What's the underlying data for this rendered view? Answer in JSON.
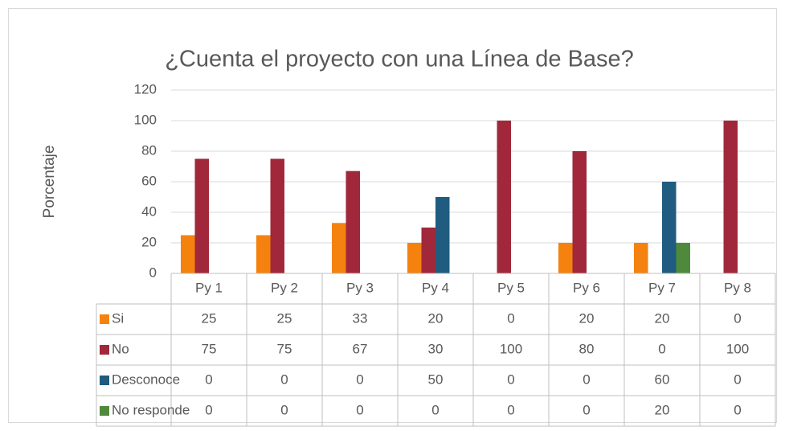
{
  "chart_data": {
    "type": "bar",
    "title": "¿Cuenta el proyecto con una Línea de Base?",
    "y_label": "Porcentaje",
    "categories": [
      "Py 1",
      "Py 2",
      "Py 3",
      "Py 4",
      "Py 5",
      "Py 6",
      "Py 7",
      "Py 8"
    ],
    "series": [
      {
        "name": "Si",
        "color": "#f5820f",
        "values": [
          25,
          25,
          33,
          20,
          0,
          20,
          20,
          0
        ]
      },
      {
        "name": "No",
        "color": "#a0283a",
        "values": [
          75,
          75,
          67,
          30,
          100,
          80,
          0,
          100
        ]
      },
      {
        "name": "Desconoce",
        "color": "#1f5c80",
        "values": [
          0,
          0,
          0,
          50,
          0,
          0,
          60,
          0
        ]
      },
      {
        "name": "No responde",
        "color": "#4f8a3c",
        "values": [
          0,
          0,
          0,
          0,
          0,
          0,
          20,
          0
        ]
      }
    ],
    "ylim": [
      0,
      120
    ],
    "yticks": [
      0,
      20,
      40,
      60,
      80,
      100,
      120
    ],
    "grid": true,
    "data_table": true
  }
}
